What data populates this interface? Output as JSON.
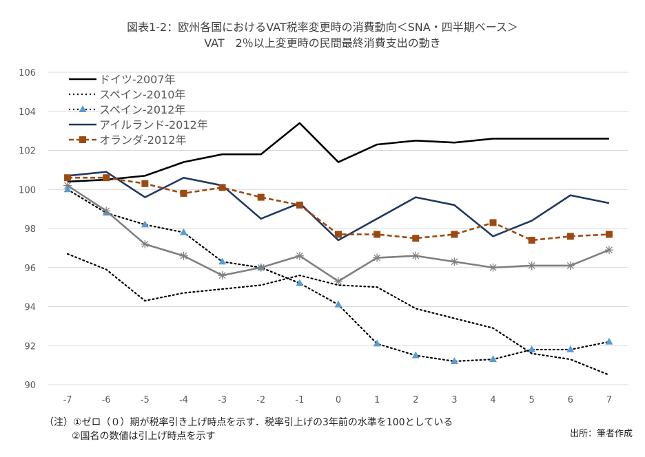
{
  "chart_data": {
    "type": "line",
    "title": "図表1-2：欧州各国におけるVAT税率変更時の消費動向＜SNA・四半期ベース＞",
    "subtitle": "VAT　2％以上変更時の民間最終消費支出の動き",
    "x": [
      -7,
      -6,
      -5,
      -4,
      -3,
      -2,
      -1,
      0,
      1,
      2,
      3,
      4,
      5,
      6,
      7
    ],
    "ylim": [
      90,
      106
    ],
    "yticks": [
      90,
      92,
      94,
      96,
      98,
      100,
      102,
      104,
      106
    ],
    "grid": true,
    "legend_position": "top-left",
    "series": [
      {
        "name": "ドイツ-2007年",
        "color": "#000000",
        "style": "solid",
        "marker": "none",
        "values": [
          100.4,
          100.5,
          100.7,
          101.4,
          101.8,
          101.8,
          103.4,
          101.4,
          102.3,
          102.5,
          102.4,
          102.6,
          102.6,
          102.6,
          102.6
        ]
      },
      {
        "name": "スペイン-2010年",
        "color": "#000000",
        "style": "dotted",
        "marker": "none",
        "values": [
          96.7,
          95.9,
          94.3,
          94.7,
          94.9,
          95.1,
          95.6,
          95.1,
          95.0,
          93.9,
          93.4,
          92.9,
          91.6,
          91.3,
          90.5
        ]
      },
      {
        "name": "スペイン-2012年",
        "color": "#000000",
        "style": "dotted",
        "marker": "triangle",
        "marker_color": "#5b9bd5",
        "values": [
          100.0,
          98.8,
          98.2,
          97.8,
          96.3,
          96.0,
          95.2,
          94.1,
          92.1,
          91.5,
          91.2,
          91.3,
          91.8,
          91.8,
          92.2
        ]
      },
      {
        "name": "アイルランド-2012年",
        "color": "#1f3864",
        "style": "solid",
        "marker": "none",
        "values": [
          100.7,
          100.9,
          99.6,
          100.6,
          100.2,
          98.5,
          99.3,
          97.4,
          98.5,
          99.6,
          99.2,
          97.6,
          98.4,
          99.7,
          99.3
        ]
      },
      {
        "name": "オランダ-2012年",
        "color": "#9c4a11",
        "style": "dashed",
        "marker": "square",
        "values": [
          100.6,
          100.6,
          100.3,
          99.8,
          100.1,
          99.6,
          99.2,
          97.7,
          97.7,
          97.5,
          97.7,
          98.3,
          97.4,
          97.6,
          97.7
        ]
      },
      {
        "name": "",
        "color": "#7f7f7f",
        "style": "solid",
        "marker": "asterisk",
        "legend": false,
        "values": [
          100.2,
          98.9,
          97.2,
          96.6,
          95.6,
          96.0,
          96.6,
          95.3,
          96.5,
          96.6,
          96.3,
          96.0,
          96.1,
          96.1,
          96.9
        ]
      }
    ]
  },
  "notes": {
    "line1": "（注）①ゼロ（０）期が税率引き上げ時点を示す．税率引上げの3年前の水準を100としている",
    "line2": "②国名の数値は引上げ時点を示す"
  },
  "source": "出所：筆者作成"
}
